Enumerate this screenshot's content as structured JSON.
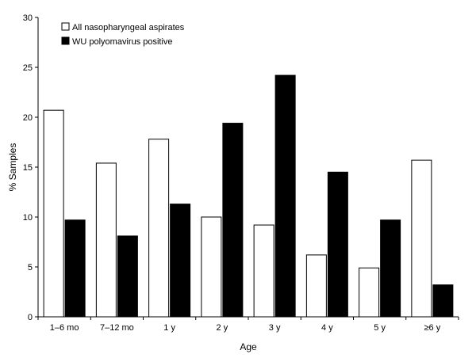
{
  "chart_data": {
    "type": "bar",
    "categories": [
      "1–6 mo",
      "7–12 mo",
      "1 y",
      "2 y",
      "3 y",
      "4 y",
      "5 y",
      "≥6 y"
    ],
    "series": [
      {
        "name": "All nasopharyngeal aspirates",
        "color": "#ffffff",
        "values": [
          20.7,
          15.4,
          17.8,
          10.0,
          9.2,
          6.2,
          4.9,
          15.7
        ]
      },
      {
        "name": "WU polyomavirus positive",
        "color": "#000000",
        "values": [
          9.7,
          8.1,
          11.3,
          19.4,
          24.2,
          14.5,
          9.7,
          3.2
        ]
      }
    ],
    "xlabel": "Age",
    "ylabel": "% Samples",
    "ylim": [
      0,
      30
    ],
    "yticks": [
      0,
      5,
      10,
      15,
      20,
      25,
      30
    ],
    "grid": false,
    "legend_position": "top-left"
  }
}
